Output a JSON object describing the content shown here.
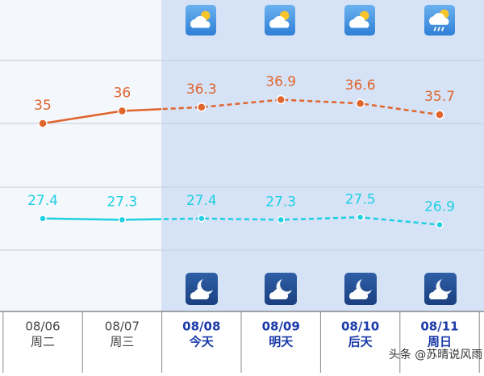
{
  "chart_data": {
    "type": "line",
    "categories": [
      "08/06",
      "08/07",
      "08/08",
      "08/09",
      "08/10",
      "08/11"
    ],
    "weekdays": [
      "周二",
      "周三",
      "今天",
      "明天",
      "后天",
      "周日"
    ],
    "highlight_from": 2,
    "series": [
      {
        "color": "#e0652d",
        "values": [
          35,
          36,
          36.3,
          36.9,
          36.6,
          35.7
        ]
      },
      {
        "color": "#1fcfe2",
        "values": [
          27.4,
          27.3,
          27.4,
          27.3,
          27.5,
          26.9
        ]
      }
    ],
    "watermark": "头条 @苏晴说风雨"
  }
}
